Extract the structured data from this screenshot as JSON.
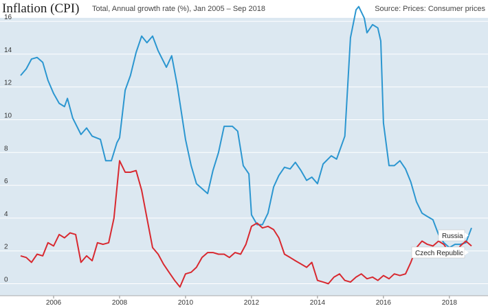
{
  "header": {
    "title": "Inflation (CPI)",
    "subtitle": "Total, Annual growth rate (%), Jan 2005 – Sep 2018",
    "source": "Source: Prices: Consumer prices"
  },
  "colors": {
    "background": "#dce8f1",
    "russia": "#2b96d0",
    "czech": "#d8282f"
  },
  "chart_data": {
    "type": "line",
    "title": "Inflation (CPI)",
    "subtitle": "Total, Annual growth rate (%), Jan 2005 – Sep 2018",
    "xlabel": "",
    "ylabel": "",
    "xlim": [
      2005.0,
      2018.75
    ],
    "ylim": [
      -0.5,
      17.0
    ],
    "yticks": [
      0,
      2,
      4,
      6,
      8,
      10,
      12,
      14,
      16
    ],
    "xticks": [
      2006,
      2008,
      2010,
      2012,
      2014,
      2016,
      2018
    ],
    "grid": "horizontal",
    "series": [
      {
        "name": "Russia",
        "color": "#2b96d0",
        "points": [
          [
            2005.0,
            12.7
          ],
          [
            2005.17,
            13.1
          ],
          [
            2005.33,
            13.7
          ],
          [
            2005.5,
            13.8
          ],
          [
            2005.67,
            13.5
          ],
          [
            2005.83,
            12.4
          ],
          [
            2006.0,
            11.6
          ],
          [
            2006.17,
            11.0
          ],
          [
            2006.33,
            10.8
          ],
          [
            2006.42,
            11.3
          ],
          [
            2006.58,
            10.1
          ],
          [
            2006.83,
            9.1
          ],
          [
            2007.0,
            9.5
          ],
          [
            2007.17,
            9.0
          ],
          [
            2007.42,
            8.8
          ],
          [
            2007.58,
            7.5
          ],
          [
            2007.75,
            7.5
          ],
          [
            2007.92,
            8.6
          ],
          [
            2008.0,
            8.9
          ],
          [
            2008.17,
            11.8
          ],
          [
            2008.33,
            12.7
          ],
          [
            2008.5,
            14.1
          ],
          [
            2008.67,
            15.1
          ],
          [
            2008.83,
            14.7
          ],
          [
            2009.0,
            15.1
          ],
          [
            2009.17,
            14.2
          ],
          [
            2009.42,
            13.2
          ],
          [
            2009.58,
            13.9
          ],
          [
            2009.75,
            12.1
          ],
          [
            2010.0,
            8.8
          ],
          [
            2010.17,
            7.2
          ],
          [
            2010.33,
            6.1
          ],
          [
            2010.5,
            5.8
          ],
          [
            2010.67,
            5.5
          ],
          [
            2010.83,
            6.9
          ],
          [
            2011.0,
            8.0
          ],
          [
            2011.17,
            9.6
          ],
          [
            2011.42,
            9.6
          ],
          [
            2011.58,
            9.3
          ],
          [
            2011.75,
            7.2
          ],
          [
            2011.92,
            6.7
          ],
          [
            2012.0,
            4.2
          ],
          [
            2012.17,
            3.6
          ],
          [
            2012.33,
            3.6
          ],
          [
            2012.5,
            4.3
          ],
          [
            2012.67,
            5.9
          ],
          [
            2012.83,
            6.6
          ],
          [
            2013.0,
            7.1
          ],
          [
            2013.17,
            7.0
          ],
          [
            2013.33,
            7.4
          ],
          [
            2013.5,
            6.9
          ],
          [
            2013.67,
            6.3
          ],
          [
            2013.83,
            6.5
          ],
          [
            2014.0,
            6.1
          ],
          [
            2014.17,
            7.3
          ],
          [
            2014.42,
            7.8
          ],
          [
            2014.58,
            7.6
          ],
          [
            2014.83,
            9.0
          ],
          [
            2015.0,
            15.0
          ],
          [
            2015.17,
            16.7
          ],
          [
            2015.25,
            16.9
          ],
          [
            2015.42,
            16.2
          ],
          [
            2015.5,
            15.3
          ],
          [
            2015.67,
            15.8
          ],
          [
            2015.83,
            15.6
          ],
          [
            2015.92,
            14.8
          ],
          [
            2016.0,
            9.8
          ],
          [
            2016.17,
            7.2
          ],
          [
            2016.33,
            7.2
          ],
          [
            2016.5,
            7.5
          ],
          [
            2016.67,
            7.0
          ],
          [
            2016.83,
            6.2
          ],
          [
            2017.0,
            5.0
          ],
          [
            2017.17,
            4.3
          ],
          [
            2017.33,
            4.1
          ],
          [
            2017.5,
            3.9
          ],
          [
            2017.67,
            3.0
          ],
          [
            2017.83,
            2.5
          ],
          [
            2018.0,
            2.2
          ],
          [
            2018.17,
            2.4
          ],
          [
            2018.33,
            2.4
          ],
          [
            2018.5,
            2.5
          ],
          [
            2018.67,
            3.4
          ]
        ]
      },
      {
        "name": "Czech Republic",
        "color": "#d8282f",
        "points": [
          [
            2005.0,
            1.7
          ],
          [
            2005.17,
            1.6
          ],
          [
            2005.33,
            1.3
          ],
          [
            2005.5,
            1.8
          ],
          [
            2005.67,
            1.7
          ],
          [
            2005.83,
            2.5
          ],
          [
            2006.0,
            2.3
          ],
          [
            2006.17,
            3.0
          ],
          [
            2006.33,
            2.8
          ],
          [
            2006.5,
            3.1
          ],
          [
            2006.67,
            3.0
          ],
          [
            2006.83,
            1.3
          ],
          [
            2007.0,
            1.7
          ],
          [
            2007.17,
            1.4
          ],
          [
            2007.33,
            2.5
          ],
          [
            2007.5,
            2.4
          ],
          [
            2007.67,
            2.5
          ],
          [
            2007.83,
            4.0
          ],
          [
            2008.0,
            7.5
          ],
          [
            2008.17,
            6.8
          ],
          [
            2008.33,
            6.8
          ],
          [
            2008.5,
            6.9
          ],
          [
            2008.67,
            5.7
          ],
          [
            2008.83,
            4.0
          ],
          [
            2009.0,
            2.2
          ],
          [
            2009.17,
            1.8
          ],
          [
            2009.33,
            1.2
          ],
          [
            2009.5,
            0.7
          ],
          [
            2009.67,
            0.2
          ],
          [
            2009.83,
            -0.2
          ],
          [
            2010.0,
            0.6
          ],
          [
            2010.17,
            0.7
          ],
          [
            2010.33,
            1.0
          ],
          [
            2010.5,
            1.6
          ],
          [
            2010.67,
            1.9
          ],
          [
            2010.83,
            1.9
          ],
          [
            2011.0,
            1.8
          ],
          [
            2011.17,
            1.8
          ],
          [
            2011.33,
            1.6
          ],
          [
            2011.5,
            1.9
          ],
          [
            2011.67,
            1.8
          ],
          [
            2011.83,
            2.4
          ],
          [
            2012.0,
            3.5
          ],
          [
            2012.17,
            3.7
          ],
          [
            2012.33,
            3.4
          ],
          [
            2012.5,
            3.5
          ],
          [
            2012.67,
            3.3
          ],
          [
            2012.83,
            2.8
          ],
          [
            2013.0,
            1.8
          ],
          [
            2013.17,
            1.6
          ],
          [
            2013.33,
            1.4
          ],
          [
            2013.5,
            1.2
          ],
          [
            2013.67,
            1.0
          ],
          [
            2013.83,
            1.3
          ],
          [
            2014.0,
            0.2
          ],
          [
            2014.17,
            0.1
          ],
          [
            2014.33,
            0.0
          ],
          [
            2014.5,
            0.4
          ],
          [
            2014.67,
            0.6
          ],
          [
            2014.83,
            0.2
          ],
          [
            2015.0,
            0.1
          ],
          [
            2015.17,
            0.4
          ],
          [
            2015.33,
            0.6
          ],
          [
            2015.5,
            0.3
          ],
          [
            2015.67,
            0.4
          ],
          [
            2015.83,
            0.2
          ],
          [
            2016.0,
            0.5
          ],
          [
            2016.17,
            0.3
          ],
          [
            2016.33,
            0.6
          ],
          [
            2016.5,
            0.5
          ],
          [
            2016.67,
            0.6
          ],
          [
            2016.83,
            1.3
          ],
          [
            2017.0,
            2.2
          ],
          [
            2017.17,
            2.6
          ],
          [
            2017.33,
            2.4
          ],
          [
            2017.5,
            2.3
          ],
          [
            2017.67,
            2.6
          ],
          [
            2017.83,
            2.4
          ],
          [
            2018.0,
            1.9
          ],
          [
            2018.17,
            1.8
          ],
          [
            2018.33,
            2.3
          ],
          [
            2018.5,
            2.6
          ],
          [
            2018.67,
            2.3
          ]
        ]
      }
    ],
    "annotations": [
      "Russia",
      "Czech Republic"
    ]
  }
}
